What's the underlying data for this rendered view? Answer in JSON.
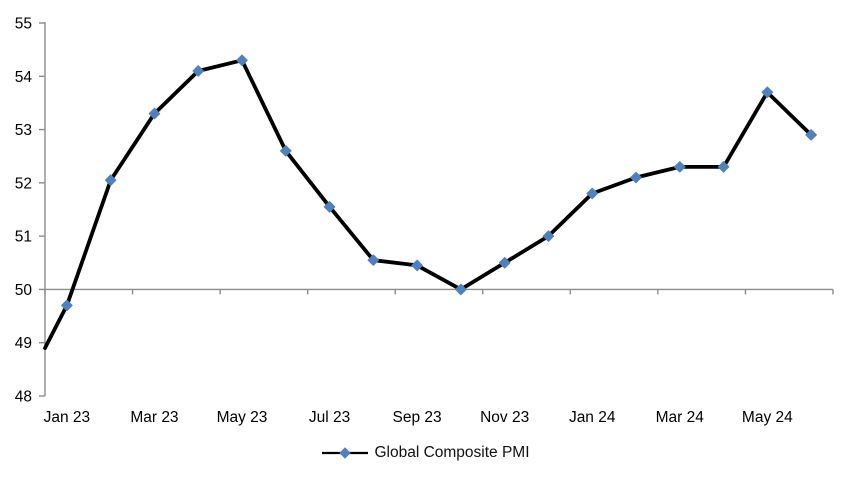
{
  "chart_data": {
    "type": "line",
    "title": "",
    "categories": [
      "Jan 23",
      "Feb 23",
      "Mar 23",
      "Apr 23",
      "May 23",
      "Jun 23",
      "Jul 23",
      "Aug 23",
      "Sep 23",
      "Oct 23",
      "Nov 23",
      "Dec 23",
      "Jan 24",
      "Feb 24",
      "Mar 24",
      "Apr 24",
      "May 24",
      "Jun 24"
    ],
    "series": [
      {
        "name": "Global Composite PMI",
        "values": [
          49.7,
          52.05,
          53.3,
          54.1,
          54.3,
          52.6,
          51.55,
          50.55,
          50.45,
          50.0,
          50.5,
          51.0,
          51.8,
          52.1,
          52.3,
          52.3,
          53.7,
          52.9
        ]
      }
    ],
    "line_start_at_axis_value": 48.9,
    "xlabel": "",
    "ylabel": "",
    "ylim": [
      48,
      55
    ],
    "y_ticks": [
      48,
      49,
      50,
      51,
      52,
      53,
      54,
      55
    ],
    "x_tick_labels": [
      "Jan 23",
      "Mar 23",
      "May 23",
      "Jul 23",
      "Sep 23",
      "Nov 23",
      "Jan 24",
      "Mar 24",
      "May 24"
    ],
    "x_tick_interval": 2,
    "axis_cross_y": 50,
    "grid": "off",
    "legend_position": "bottom-center",
    "marker_shape": "diamond",
    "colors": {
      "line": "#000000",
      "marker": "#4F81BD",
      "axis": "#8C8C8C",
      "text": "#000000"
    }
  }
}
